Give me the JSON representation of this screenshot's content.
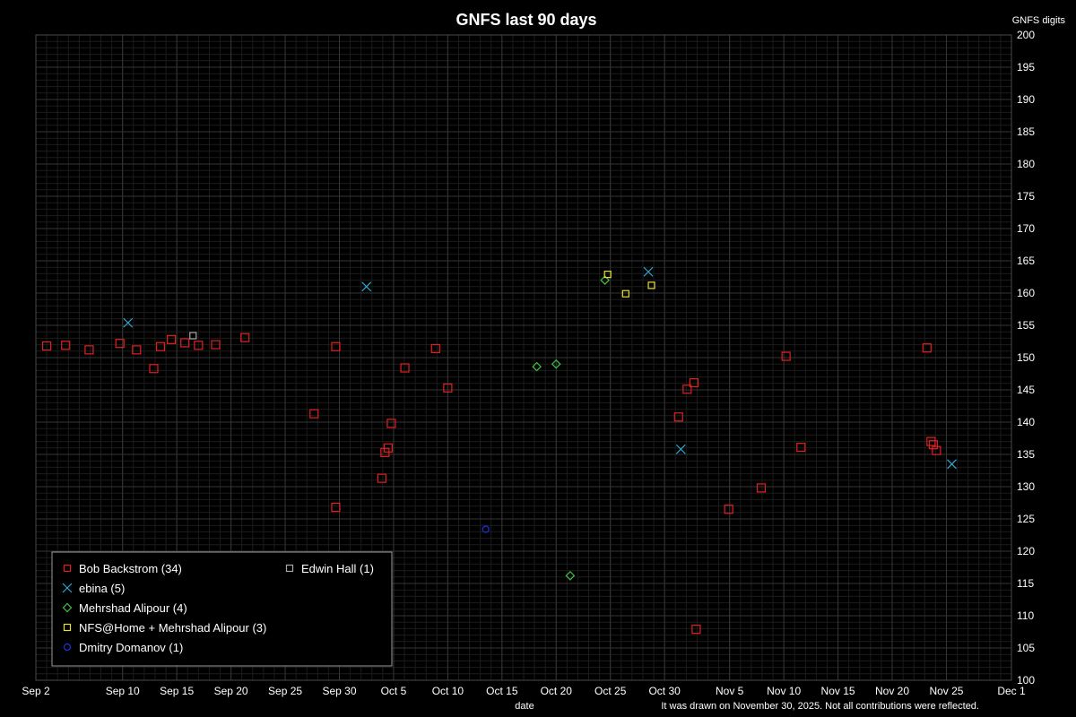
{
  "colors": {
    "background": "#000000",
    "grid_minor": "#1c1c1c",
    "grid_major": "#363636",
    "axis": "#4a4a4a",
    "text": "#ffffff"
  },
  "chart_data": {
    "type": "scatter",
    "title": "GNFS last 90 days",
    "xlabel": "date",
    "ylabel": "GNFS digits",
    "footnote": "It was drawn on November 30, 2025. Not all contributions were reflected.",
    "xlim": [
      "2025-09-02",
      "2025-12-01"
    ],
    "ylim": [
      100,
      200
    ],
    "yticks": [
      100,
      105,
      110,
      115,
      120,
      125,
      130,
      135,
      140,
      145,
      150,
      155,
      160,
      165,
      170,
      175,
      180,
      185,
      190,
      195,
      200
    ],
    "xticks": [
      {
        "date": "2025-09-02",
        "label": "Sep 2"
      },
      {
        "date": "2025-09-10",
        "label": "Sep 10"
      },
      {
        "date": "2025-09-15",
        "label": "Sep 15"
      },
      {
        "date": "2025-09-20",
        "label": "Sep 20"
      },
      {
        "date": "2025-09-25",
        "label": "Sep 25"
      },
      {
        "date": "2025-09-30",
        "label": "Sep 30"
      },
      {
        "date": "2025-10-05",
        "label": "Oct 5"
      },
      {
        "date": "2025-10-10",
        "label": "Oct 10"
      },
      {
        "date": "2025-10-15",
        "label": "Oct 15"
      },
      {
        "date": "2025-10-20",
        "label": "Oct 20"
      },
      {
        "date": "2025-10-25",
        "label": "Oct 25"
      },
      {
        "date": "2025-10-30",
        "label": "Oct 30"
      },
      {
        "date": "2025-11-05",
        "label": "Nov 5"
      },
      {
        "date": "2025-11-10",
        "label": "Nov 10"
      },
      {
        "date": "2025-11-15",
        "label": "Nov 15"
      },
      {
        "date": "2025-11-20",
        "label": "Nov 20"
      },
      {
        "date": "2025-11-25",
        "label": "Nov 25"
      },
      {
        "date": "2025-12-01",
        "label": "Dec 1"
      }
    ],
    "grid": true,
    "legend_position": "bottom-left",
    "series": [
      {
        "name": "Bob Backstrom (34)",
        "marker": "square",
        "color": "#e02020",
        "points": [
          {
            "x": "2025-09-03 00:00",
            "y": 151.8
          },
          {
            "x": "2025-09-04 18:00",
            "y": 151.9
          },
          {
            "x": "2025-09-06 22:00",
            "y": 151.2
          },
          {
            "x": "2025-09-09 18:00",
            "y": 152.2
          },
          {
            "x": "2025-09-11 07:00",
            "y": 151.2
          },
          {
            "x": "2025-09-12 21:00",
            "y": 148.3
          },
          {
            "x": "2025-09-13 12:00",
            "y": 151.7
          },
          {
            "x": "2025-09-14 12:00",
            "y": 152.8
          },
          {
            "x": "2025-09-15 18:00",
            "y": 152.3
          },
          {
            "x": "2025-09-17 00:00",
            "y": 151.9
          },
          {
            "x": "2025-09-18 14:00",
            "y": 152.0
          },
          {
            "x": "2025-09-21 07:00",
            "y": 153.1
          },
          {
            "x": "2025-09-27 16:00",
            "y": 141.3
          },
          {
            "x": "2025-09-29 16:00",
            "y": 151.7
          },
          {
            "x": "2025-09-29 16:00",
            "y": 126.8
          },
          {
            "x": "2025-10-03 22:00",
            "y": 131.3
          },
          {
            "x": "2025-10-04 05:00",
            "y": 135.3
          },
          {
            "x": "2025-10-04 12:00",
            "y": 136.0
          },
          {
            "x": "2025-10-04 19:00",
            "y": 139.8
          },
          {
            "x": "2025-10-06 01:00",
            "y": 148.4
          },
          {
            "x": "2025-10-08 21:00",
            "y": 151.4
          },
          {
            "x": "2025-10-10 00:00",
            "y": 145.3
          },
          {
            "x": "2025-10-31 07:00",
            "y": 140.8
          },
          {
            "x": "2025-11-01 02:00",
            "y": 145.1
          },
          {
            "x": "2025-11-01 17:00",
            "y": 146.1
          },
          {
            "x": "2025-11-01 22:00",
            "y": 107.9
          },
          {
            "x": "2025-11-04 22:00",
            "y": 126.5
          },
          {
            "x": "2025-11-07 22:00",
            "y": 129.8
          },
          {
            "x": "2025-11-10 05:00",
            "y": 150.2
          },
          {
            "x": "2025-11-11 14:00",
            "y": 136.1
          },
          {
            "x": "2025-11-23 05:00",
            "y": 151.5
          },
          {
            "x": "2025-11-23 14:00",
            "y": 137.0
          },
          {
            "x": "2025-11-23 19:00",
            "y": 136.5
          },
          {
            "x": "2025-11-24 02:00",
            "y": 135.6
          }
        ]
      },
      {
        "name": "ebina (5)",
        "marker": "x",
        "color": "#30a8d0",
        "points": [
          {
            "x": "2025-09-10 12:00",
            "y": 155.4
          },
          {
            "x": "2025-10-02 12:00",
            "y": 161.0
          },
          {
            "x": "2025-10-28 12:00",
            "y": 163.3
          },
          {
            "x": "2025-10-31 12:00",
            "y": 135.8
          },
          {
            "x": "2025-11-25 12:00",
            "y": 133.5
          }
        ]
      },
      {
        "name": "Mehrshad Alipour (4)",
        "marker": "diamond",
        "color": "#40c040",
        "points": [
          {
            "x": "2025-10-18 05:00",
            "y": 148.6
          },
          {
            "x": "2025-10-20 00:00",
            "y": 149.0
          },
          {
            "x": "2025-10-21 07:00",
            "y": 116.2
          },
          {
            "x": "2025-10-24 12:00",
            "y": 162.0
          }
        ]
      },
      {
        "name": "NFS@Home + Mehrshad Alipour (3)",
        "marker": "square-small",
        "color": "#e8e030",
        "points": [
          {
            "x": "2025-10-24 18:00",
            "y": 162.9
          },
          {
            "x": "2025-10-26 10:00",
            "y": 159.9
          },
          {
            "x": "2025-10-28 19:00",
            "y": 161.2
          }
        ]
      },
      {
        "name": "Dmitry Domanov (1)",
        "marker": "circle",
        "color": "#2030e0",
        "points": [
          {
            "x": "2025-10-13 12:00",
            "y": 123.4
          }
        ]
      },
      {
        "name": "Edwin Hall (1)",
        "marker": "square-small",
        "color": "#a8a8a8",
        "points": [
          {
            "x": "2025-09-16 12:00",
            "y": 153.4
          }
        ]
      }
    ]
  }
}
